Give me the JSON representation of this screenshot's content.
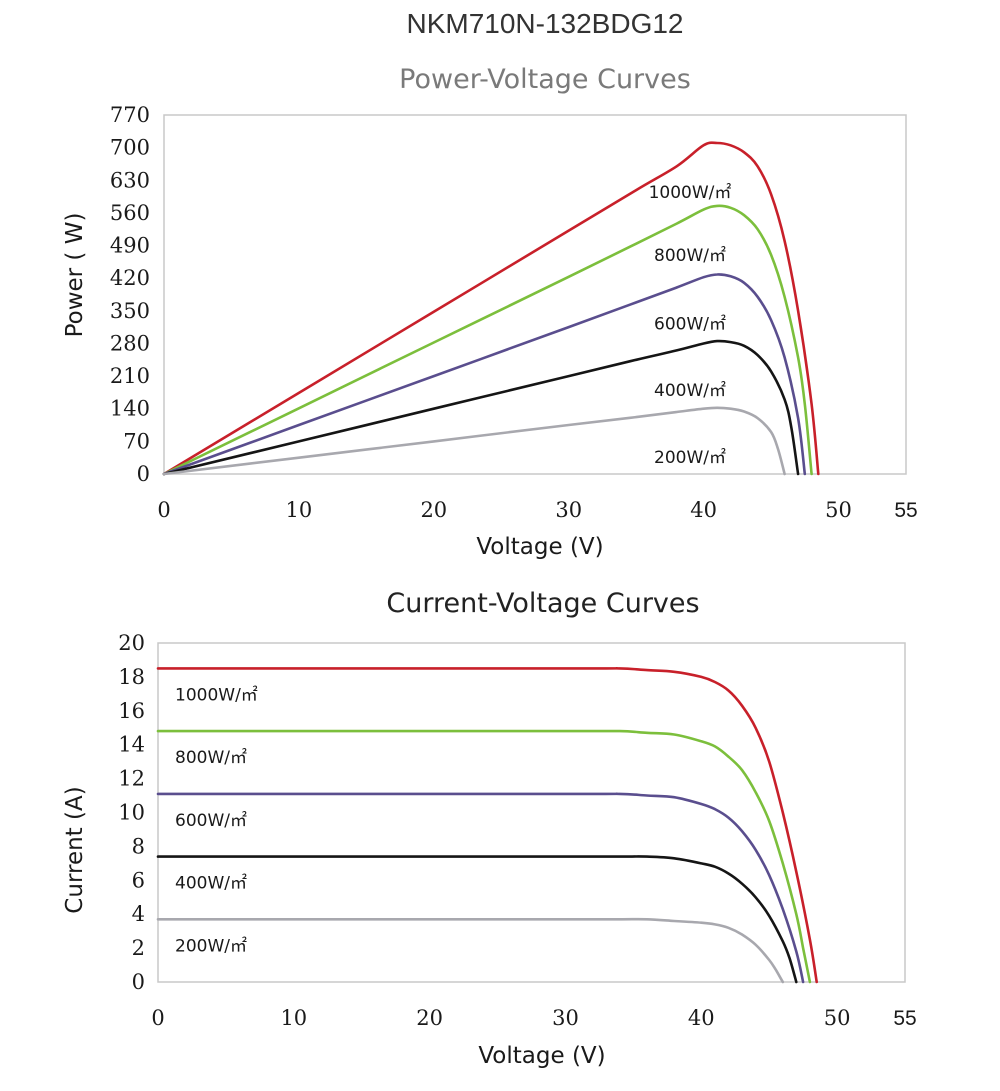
{
  "page_title": "NKM710N-132BDG12",
  "colors": {
    "1000W/㎡": "#c8202a",
    "800W/㎡": "#7cbf3c",
    "600W/㎡": "#5a4e8e",
    "400W/㎡": "#151515",
    "200W/㎡": "#a8a8ae",
    "title_pv": "#7a7a7a",
    "title_iv": "#222222"
  },
  "chart_data": [
    {
      "type": "line",
      "title": "Power-Voltage Curves",
      "xlabel": "Voltage (V)",
      "ylabel": "Power ( W)",
      "xlim": [
        0,
        55
      ],
      "ylim": [
        0,
        770
      ],
      "xticks": [
        0,
        10,
        20,
        30,
        40,
        50,
        55
      ],
      "yticks": [
        0,
        70,
        140,
        210,
        280,
        350,
        420,
        490,
        560,
        630,
        700,
        770
      ],
      "grid": false,
      "series": [
        {
          "name": "1000W/㎡",
          "x": [
            0,
            10,
            20,
            30,
            35,
            38,
            40,
            41,
            42,
            43,
            44,
            45,
            46,
            47,
            48,
            48.5
          ],
          "y": [
            0,
            174,
            348,
            522,
            609,
            660,
            705,
            710,
            705,
            690,
            660,
            600,
            500,
            350,
            150,
            0
          ]
        },
        {
          "name": "800W/㎡",
          "x": [
            0,
            10,
            20,
            30,
            35,
            38,
            40,
            41,
            42,
            43,
            44,
            45,
            46,
            47,
            47.5,
            48
          ],
          "y": [
            0,
            141,
            282,
            423,
            494,
            537,
            567,
            575,
            571,
            555,
            525,
            470,
            380,
            250,
            150,
            0
          ]
        },
        {
          "name": "600W/㎡",
          "x": [
            0,
            10,
            20,
            30,
            35,
            38,
            40,
            41,
            42,
            43,
            44,
            45,
            46,
            47,
            47.5
          ],
          "y": [
            0,
            105,
            210,
            315,
            368,
            400,
            422,
            428,
            424,
            410,
            380,
            330,
            250,
            120,
            0
          ]
        },
        {
          "name": "400W/㎡",
          "x": [
            0,
            10,
            20,
            30,
            35,
            38,
            40,
            41,
            42,
            43,
            44,
            45,
            46,
            46.5,
            47
          ],
          "y": [
            0,
            70,
            140,
            210,
            245,
            265,
            280,
            285,
            283,
            275,
            255,
            220,
            160,
            100,
            0
          ]
        },
        {
          "name": "200W/㎡",
          "x": [
            0,
            10,
            20,
            30,
            35,
            38,
            40,
            41,
            42,
            43,
            44,
            45,
            45.5,
            46
          ],
          "y": [
            0,
            35,
            70,
            105,
            122,
            133,
            140,
            142,
            140,
            134,
            120,
            90,
            55,
            0
          ]
        }
      ],
      "annotations": [
        "1000W/㎡",
        "800W/㎡",
        "600W/㎡",
        "400W/㎡",
        "200W/㎡"
      ]
    },
    {
      "type": "line",
      "title": "Current-Voltage Curves",
      "xlabel": "Voltage (V)",
      "ylabel": "Current (A)",
      "xlim": [
        0,
        55
      ],
      "ylim": [
        0,
        20
      ],
      "xticks": [
        0,
        10,
        20,
        30,
        40,
        50,
        55
      ],
      "yticks": [
        0,
        2,
        4,
        6,
        8,
        10,
        12,
        14,
        16,
        18,
        20
      ],
      "grid": false,
      "series": [
        {
          "name": "1000W/㎡",
          "x": [
            0,
            30,
            34,
            36,
            38,
            40,
            41,
            42,
            43,
            44,
            45,
            46,
            47,
            48,
            48.5
          ],
          "y": [
            18.5,
            18.5,
            18.5,
            18.4,
            18.3,
            18.0,
            17.7,
            17.2,
            16.3,
            15.0,
            13.0,
            10.0,
            6.5,
            2.5,
            0
          ]
        },
        {
          "name": "800W/㎡",
          "x": [
            0,
            30,
            34,
            36,
            38,
            40,
            41,
            42,
            43,
            44,
            45,
            46,
            47,
            47.5,
            48
          ],
          "y": [
            14.8,
            14.8,
            14.8,
            14.7,
            14.6,
            14.2,
            13.9,
            13.3,
            12.5,
            11.2,
            9.5,
            7.0,
            4.0,
            2.0,
            0
          ]
        },
        {
          "name": "600W/㎡",
          "x": [
            0,
            30,
            34,
            36,
            38,
            40,
            41,
            42,
            43,
            44,
            45,
            46,
            47,
            47.5
          ],
          "y": [
            11.1,
            11.1,
            11.1,
            11.0,
            10.9,
            10.5,
            10.2,
            9.7,
            8.9,
            7.8,
            6.3,
            4.3,
            1.8,
            0
          ]
        },
        {
          "name": "400W/㎡",
          "x": [
            0,
            30,
            34,
            36,
            38,
            40,
            41,
            42,
            43,
            44,
            45,
            46,
            46.5,
            47
          ],
          "y": [
            7.4,
            7.4,
            7.4,
            7.4,
            7.3,
            7.0,
            6.8,
            6.4,
            5.8,
            5.0,
            3.9,
            2.4,
            1.4,
            0
          ]
        },
        {
          "name": "200W/㎡",
          "x": [
            0,
            30,
            34,
            36,
            38,
            40,
            41,
            42,
            43,
            44,
            45,
            45.5,
            46
          ],
          "y": [
            3.7,
            3.7,
            3.7,
            3.7,
            3.6,
            3.5,
            3.4,
            3.2,
            2.8,
            2.2,
            1.3,
            0.7,
            0
          ]
        }
      ],
      "annotations": [
        "1000W/㎡",
        "800W/㎡",
        "600W/㎡",
        "400W/㎡",
        "200W/㎡"
      ]
    }
  ]
}
